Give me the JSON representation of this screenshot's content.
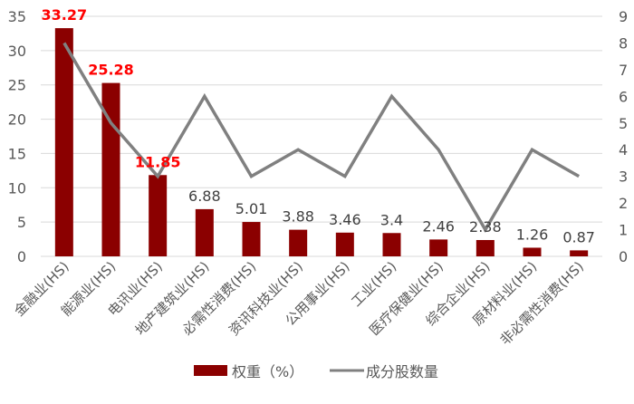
{
  "chart_data": {
    "type": "bar+line",
    "title": "",
    "categories": [
      "金融业(HS)",
      "能源业(HS)",
      "电讯业(HS)",
      "地产建筑业(HS)",
      "必需性消费(HS)",
      "资讯科技业(HS)",
      "公用事业(HS)",
      "工业(HS)",
      "医疗保健业(HS)",
      "综合企业(HS)",
      "原材料业(HS)",
      "非必需性消费(HS)"
    ],
    "series": [
      {
        "name": "权重（%）",
        "type": "bar",
        "axis": "left",
        "color": "#8B0000",
        "values": [
          33.27,
          25.28,
          11.85,
          6.88,
          5.01,
          3.88,
          3.46,
          3.4,
          2.46,
          2.38,
          1.26,
          0.87
        ],
        "labels": [
          "33.27",
          "25.28",
          "11.85",
          "6.88",
          "5.01",
          "3.88",
          "3.46",
          "3.4",
          "2.46",
          "2.38",
          "1.26",
          "0.87"
        ],
        "highlight_labels": [
          0,
          1,
          2
        ],
        "highlight_color": "#FF0000"
      },
      {
        "name": "成分股数量",
        "type": "line",
        "axis": "right",
        "color": "#808080",
        "values": [
          8,
          5,
          3,
          6,
          3,
          4,
          3,
          6,
          4,
          1,
          4,
          3
        ]
      }
    ],
    "left_axis": {
      "min": 0,
      "max": 35,
      "ticks": [
        0,
        5,
        10,
        15,
        20,
        25,
        30,
        35
      ]
    },
    "right_axis": {
      "min": 0,
      "max": 9,
      "ticks": [
        0,
        1,
        2,
        3,
        4,
        5,
        6,
        7,
        8,
        9
      ]
    },
    "grid": true,
    "legend_position": "bottom",
    "xlabel": "",
    "ylabel": ""
  },
  "legend": {
    "bar_label": "权重（%）",
    "line_label": "成分股数量"
  }
}
